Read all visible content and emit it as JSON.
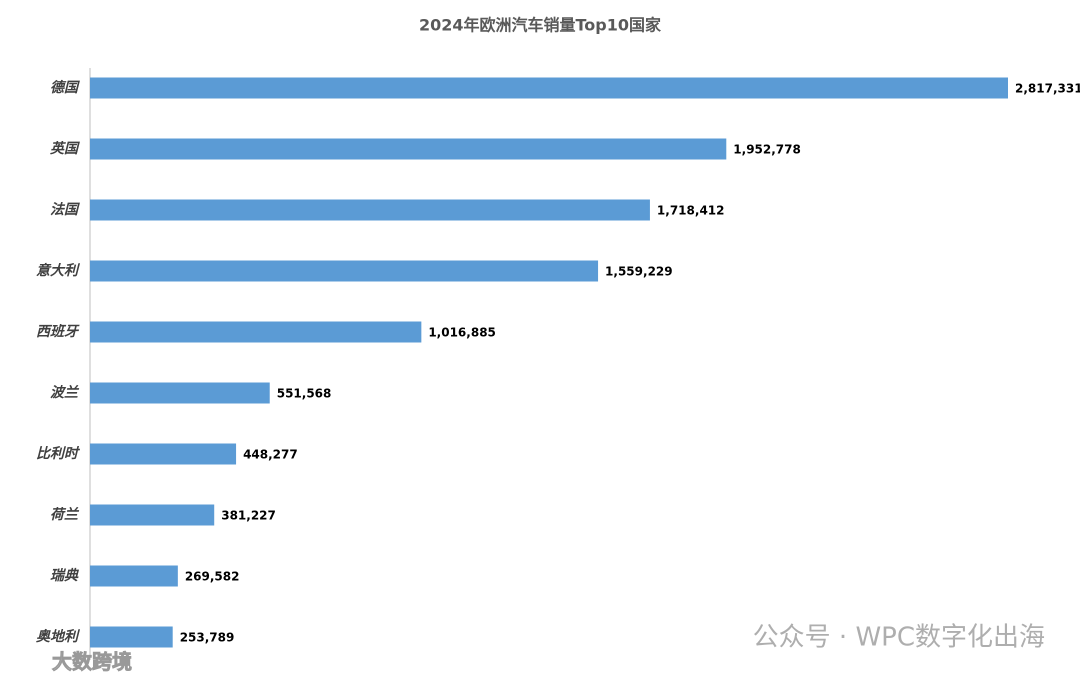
{
  "chart_data": {
    "type": "hbar",
    "title": "2024年欧洲汽车销量Top10国家",
    "categories": [
      "德国",
      "英国",
      "法国",
      "意大利",
      "西班牙",
      "波兰",
      "比利时",
      "荷兰",
      "瑞典",
      "奥地利"
    ],
    "values": [
      2817331,
      1952778,
      1718412,
      1559229,
      1016885,
      551568,
      448277,
      381227,
      269582,
      253789
    ],
    "value_labels": [
      "2,817,331",
      "1,952,778",
      "1,718,412",
      "1,559,229",
      "1,016,885",
      "551,568",
      "448,277",
      "381,227",
      "269,582",
      "253,789"
    ],
    "color": "#5b9bd5"
  },
  "watermarks": [
    "公众号 · WPC数字化出海",
    "大数跨境"
  ]
}
